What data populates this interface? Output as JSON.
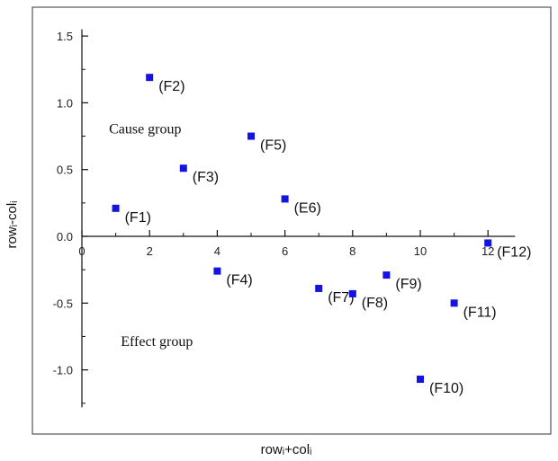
{
  "chart_data": {
    "type": "scatter",
    "title": "",
    "xlabel": "rowᵢ+colᵢ",
    "ylabel": "rowᵢ-colᵢ",
    "xlim": [
      0,
      12.8
    ],
    "ylim": [
      -1.28,
      1.55
    ],
    "xticks": [
      0,
      2,
      4,
      6,
      8,
      10,
      12
    ],
    "xtick_labels": [
      "0",
      "2",
      "4",
      "6",
      "8",
      "10",
      "12"
    ],
    "yticks": [
      -1.0,
      -0.5,
      0.0,
      0.5,
      1.0,
      1.5
    ],
    "ytick_labels": [
      "-1.0",
      "-0.5",
      "0.0",
      "0.5",
      "1.0",
      "1.5"
    ],
    "grid": false,
    "marker_color": "#1414e0",
    "points": [
      {
        "label": "(F1)",
        "x": 1.0,
        "y": 0.21
      },
      {
        "label": "(F2)",
        "x": 2.0,
        "y": 1.19
      },
      {
        "label": "(F3)",
        "x": 3.0,
        "y": 0.51
      },
      {
        "label": "(F4)",
        "x": 4.0,
        "y": -0.26
      },
      {
        "label": "(F5)",
        "x": 5.0,
        "y": 0.75
      },
      {
        "label": "(E6)",
        "x": 6.0,
        "y": 0.28
      },
      {
        "label": "(F7)",
        "x": 7.0,
        "y": -0.39
      },
      {
        "label": "(F8)",
        "x": 8.0,
        "y": -0.43
      },
      {
        "label": "(F9)",
        "x": 9.0,
        "y": -0.29
      },
      {
        "label": "(F10)",
        "x": 10.0,
        "y": -1.07
      },
      {
        "label": "(F11)",
        "x": 11.0,
        "y": -0.5
      },
      {
        "label": "(F12)",
        "x": 12.0,
        "y": -0.05
      }
    ],
    "annotations": [
      "Cause group",
      "Effect group"
    ]
  }
}
